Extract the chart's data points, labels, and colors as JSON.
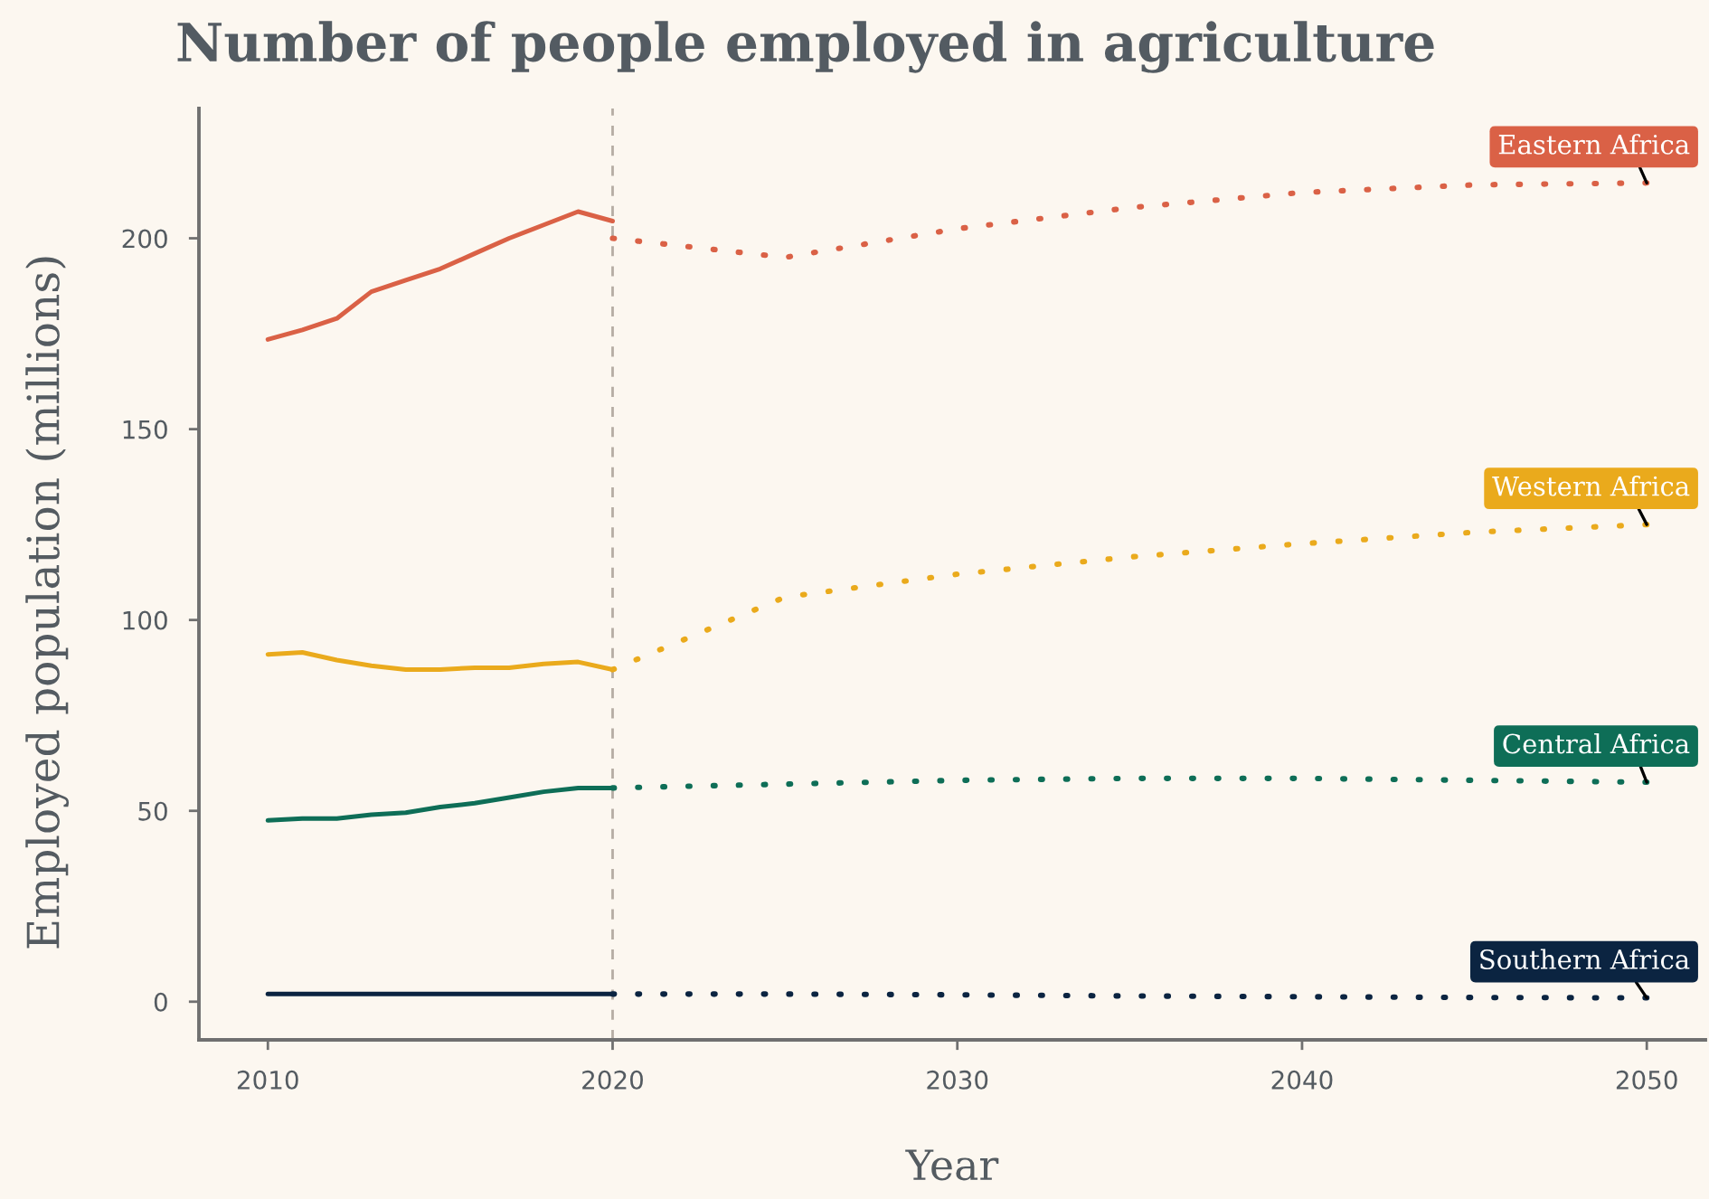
{
  "chart_data": {
    "type": "line",
    "title": "Number of people employed in agriculture",
    "xlabel": "Year",
    "ylabel": "Employed population (millions)",
    "xlim": [
      2008,
      2051.7
    ],
    "xticks": [
      2010,
      2020,
      2030,
      2040,
      2050
    ],
    "ylim": [
      -10,
      234
    ],
    "yticks": [
      0,
      50,
      100,
      150,
      200
    ],
    "marker": "none",
    "ref_lines": [
      {
        "axis": "x",
        "value": 2020,
        "color": "#b5aca3",
        "line_style": "dashed"
      }
    ],
    "series": [
      {
        "color": "#da6146",
        "line_style": "solid",
        "x": [
          2010,
          2011,
          2012,
          2013,
          2014,
          2015,
          2016,
          2017,
          2018,
          2019,
          2020
        ],
        "values": [
          173.5,
          176,
          179,
          186,
          189,
          192,
          196,
          200,
          203.5,
          207,
          204.5
        ]
      },
      {
        "name": "Eastern Africa",
        "color": "#da6146",
        "line_style": "dotted",
        "x": [
          2020,
          2025,
          2030,
          2035,
          2040,
          2045,
          2050
        ],
        "values": [
          200,
          195,
          202.5,
          208,
          212,
          214,
          214.5
        ]
      },
      {
        "color": "#eaaa1c",
        "line_style": "solid",
        "x": [
          2010,
          2011,
          2012,
          2013,
          2014,
          2015,
          2016,
          2017,
          2018,
          2019,
          2020
        ],
        "values": [
          91,
          91.5,
          89.5,
          88,
          87,
          87,
          87.5,
          87.5,
          88.5,
          89,
          87
        ]
      },
      {
        "name": "Western Africa",
        "color": "#eaaa1c",
        "line_style": "dotted",
        "x": [
          2020,
          2025,
          2030,
          2035,
          2040,
          2045,
          2050
        ],
        "values": [
          87,
          106,
          112,
          116.5,
          120,
          123,
          125
        ]
      },
      {
        "color": "#0e6e57",
        "line_style": "solid",
        "x": [
          2010,
          2011,
          2012,
          2013,
          2014,
          2015,
          2016,
          2017,
          2018,
          2019,
          2020
        ],
        "values": [
          47.5,
          48,
          48,
          49,
          49.5,
          51,
          52,
          53.5,
          55,
          56,
          56
        ]
      },
      {
        "name": "Central Africa",
        "color": "#0e6e57",
        "line_style": "dotted",
        "x": [
          2020,
          2025,
          2030,
          2035,
          2040,
          2045,
          2050
        ],
        "values": [
          56,
          57,
          58,
          58.5,
          58.5,
          58,
          57.5
        ]
      },
      {
        "color": "#0b2441",
        "line_style": "solid",
        "x": [
          2010,
          2011,
          2012,
          2013,
          2014,
          2015,
          2016,
          2017,
          2018,
          2019,
          2020
        ],
        "values": [
          2,
          2,
          2,
          2,
          2,
          2,
          2,
          2,
          2,
          2,
          2
        ]
      },
      {
        "name": "Southern Africa",
        "color": "#0b2441",
        "line_style": "dotted",
        "x": [
          2020,
          2025,
          2030,
          2035,
          2040,
          2045,
          2050
        ],
        "values": [
          2,
          2,
          1.8,
          1.5,
          1.3,
          1.1,
          1
        ]
      }
    ]
  }
}
